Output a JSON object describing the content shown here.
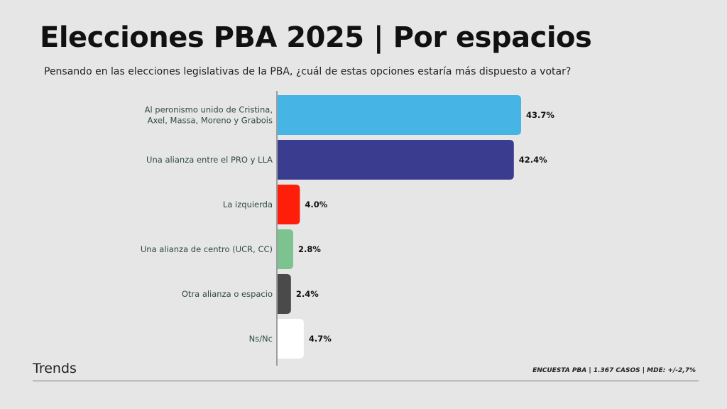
{
  "header": {
    "title": "Elecciones PBA 2025 | Por espacios",
    "subtitle": "Pensando en las elecciones legislativas de la PBA, ¿cuál de estas opciones estaría más dispuesto a votar?"
  },
  "footer": {
    "brand": "Trends",
    "note": "ENCUESTA PBA | 1.367 CASOS | MDE: +/-2,7%"
  },
  "chart_data": {
    "type": "bar",
    "orientation": "horizontal",
    "title": "Elecciones PBA 2025 | Por espacios",
    "subtitle": "Pensando en las elecciones legislativas de la PBA, ¿cuál de estas opciones estaría más dispuesto a votar?",
    "categories": [
      [
        "Al peronismo unido de Cristina,",
        "Axel, Massa, Moreno y Grabois"
      ],
      [
        "Una alianza entre el PRO y LLA"
      ],
      [
        "La izquierda"
      ],
      [
        "Una alianza de centro (UCR, CC)"
      ],
      [
        "Otra alianza o espacio"
      ],
      [
        "Ns/Nc"
      ]
    ],
    "values": [
      43.7,
      42.4,
      4.0,
      2.8,
      2.4,
      4.7
    ],
    "value_labels": [
      "43.7%",
      "42.4%",
      "4.0%",
      "2.8%",
      "2.4%",
      "4.7%"
    ],
    "colors": [
      "#47b4e6",
      "#3a3d8f",
      "#ff1e0a",
      "#7dc38f",
      "#4a4a4a",
      "#ffffff"
    ],
    "xlim": [
      0,
      43.7
    ],
    "grid": false,
    "legend": "none"
  }
}
